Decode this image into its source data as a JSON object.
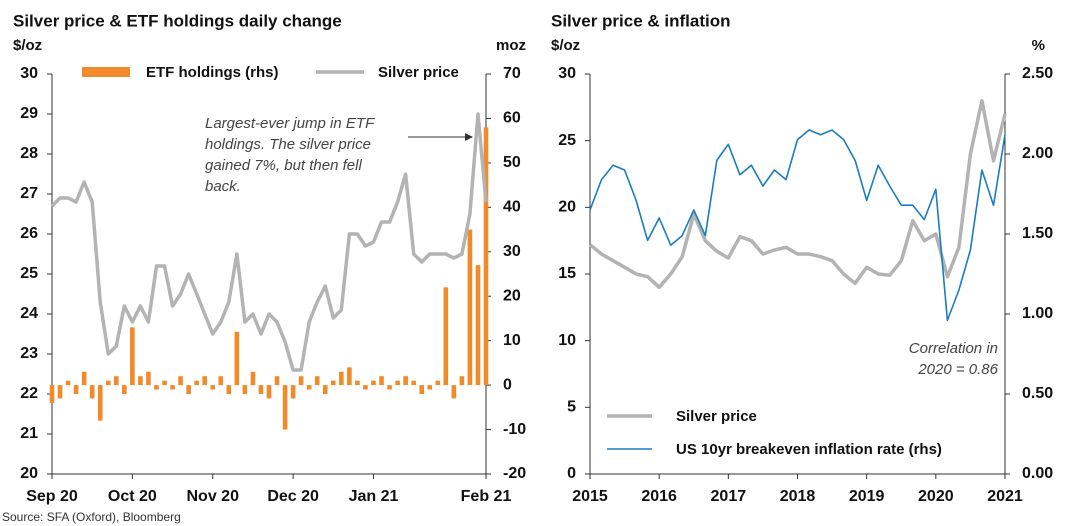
{
  "chart_data": [
    {
      "type": "combo",
      "title": "Silver price & ETF holdings daily change",
      "ylabel": "$/oz",
      "y2label": "moz",
      "xlim": [
        0,
        54
      ],
      "xticks": [
        {
          "value": 0,
          "label": "Sep 20"
        },
        {
          "value": 10,
          "label": "Oct 20"
        },
        {
          "value": 20,
          "label": "Nov 20"
        },
        {
          "value": 30,
          "label": "Dec 20"
        },
        {
          "value": 40,
          "label": "Jan 21"
        },
        {
          "value": 54,
          "label": "Feb 21"
        }
      ],
      "ylim": [
        20,
        30
      ],
      "yticks": [
        20,
        21,
        22,
        23,
        24,
        25,
        26,
        27,
        28,
        29,
        30
      ],
      "y2lim": [
        -20,
        70
      ],
      "y2ticks": [
        -20,
        -10,
        0,
        10,
        20,
        30,
        40,
        50,
        60,
        70
      ],
      "series": [
        {
          "name": "ETF holdings (rhs)",
          "kind": "bar",
          "axis": "y2",
          "color": "#f08a2a",
          "values": [
            -4,
            -3,
            1,
            -2,
            3,
            -3,
            -8,
            1,
            2,
            -2,
            13,
            2,
            3,
            -1,
            1,
            -1,
            2,
            -2,
            1,
            2,
            -1,
            2,
            -2,
            12,
            -2,
            3,
            -2,
            -3,
            2,
            -10,
            -3,
            2,
            -1,
            2,
            -2,
            1,
            3,
            4,
            1,
            -1,
            1,
            2,
            -1,
            1,
            2,
            1,
            -2,
            -1,
            1,
            22,
            -3,
            2,
            35,
            27,
            58
          ]
        },
        {
          "name": "Silver price",
          "kind": "line",
          "color": "#b3b3b3",
          "values": [
            26.7,
            26.9,
            26.9,
            26.8,
            27.3,
            26.8,
            24.3,
            23.0,
            23.2,
            24.2,
            23.8,
            24.2,
            23.8,
            25.2,
            25.2,
            24.2,
            24.5,
            25.0,
            24.5,
            24.0,
            23.5,
            23.8,
            24.3,
            25.5,
            23.8,
            24.0,
            23.5,
            24.0,
            23.8,
            23.3,
            22.6,
            22.6,
            23.8,
            24.3,
            24.7,
            23.9,
            24.1,
            26.0,
            26.0,
            25.7,
            25.8,
            26.3,
            26.3,
            26.8,
            27.5,
            25.5,
            25.3,
            25.5,
            25.5,
            25.5,
            25.4,
            25.5,
            26.5,
            29.0,
            26.8
          ]
        }
      ],
      "annotation": [
        "Largest-ever jump in ETF",
        "holdings. The silver price",
        "gained 7%, but then fell",
        "back."
      ]
    },
    {
      "type": "line",
      "title": "Silver price & inflation",
      "ylabel": "$/oz",
      "y2label": "%",
      "xlim": [
        0,
        36
      ],
      "xticks": [
        {
          "value": 0,
          "label": "2015"
        },
        {
          "value": 6,
          "label": "2016"
        },
        {
          "value": 12,
          "label": "2017"
        },
        {
          "value": 18,
          "label": "2018"
        },
        {
          "value": 24,
          "label": "2019"
        },
        {
          "value": 30,
          "label": "2020"
        },
        {
          "value": 36,
          "label": "2021"
        }
      ],
      "ylim": [
        0,
        30
      ],
      "yticks": [
        0,
        5,
        10,
        15,
        20,
        25,
        30
      ],
      "y2lim": [
        0,
        2.5
      ],
      "y2ticks": [
        {
          "value": 0,
          "label": "0.00"
        },
        {
          "value": 0.5,
          "label": "0.50"
        },
        {
          "value": 1,
          "label": "1.00"
        },
        {
          "value": 1.5,
          "label": "1.50"
        },
        {
          "value": 2,
          "label": "2.00"
        },
        {
          "value": 2.5,
          "label": "2.50"
        }
      ],
      "series": [
        {
          "name": "Silver price",
          "kind": "line",
          "color": "#b3b3b3",
          "values": [
            17.2,
            16.5,
            16.0,
            15.5,
            15.0,
            14.8,
            14.0,
            15.0,
            16.3,
            19.5,
            17.5,
            16.7,
            16.2,
            17.8,
            17.5,
            16.5,
            16.8,
            17.0,
            16.5,
            16.5,
            16.3,
            16.0,
            15.0,
            14.3,
            15.5,
            15.0,
            14.9,
            16.0,
            19.0,
            17.5,
            18.0,
            14.8,
            17.0,
            24.0,
            28.0,
            23.5,
            27.0
          ]
        },
        {
          "name": "US 10yr breakeven inflation rate (rhs)",
          "kind": "line",
          "axis": "y2",
          "color": "#1a7dbf",
          "values": [
            1.65,
            1.84,
            1.93,
            1.9,
            1.71,
            1.46,
            1.6,
            1.43,
            1.49,
            1.65,
            1.49,
            1.96,
            2.06,
            1.87,
            1.93,
            1.8,
            1.9,
            1.84,
            2.09,
            2.15,
            2.12,
            2.15,
            2.09,
            1.96,
            1.71,
            1.93,
            1.8,
            1.68,
            1.68,
            1.59,
            1.78,
            0.96,
            1.15,
            1.4,
            1.9,
            1.68,
            2.12
          ]
        }
      ],
      "annotation": [
        "Correlation in",
        "2020 = 0.86"
      ]
    }
  ],
  "source": "Source: SFA (Oxford), Bloomberg"
}
